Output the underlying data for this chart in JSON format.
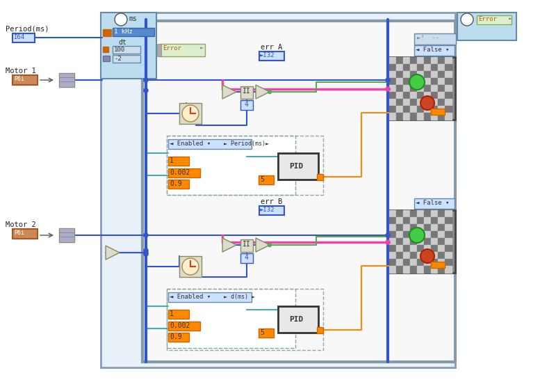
{
  "bg_color": "#ffffff",
  "wire_blue": "#3355cc",
  "wire_pink": "#ee44aa",
  "wire_orange": "#ff8800",
  "wire_green": "#55aa55",
  "wire_teal": "#44aaaa",
  "period_ms_label": "Period(ms)",
  "motor1_label": "Motor 1",
  "motor2_label": "Motor 2",
  "err_a_label": "err A",
  "err_b_label": "err B",
  "error_label": "Error",
  "dt_label": "dt",
  "pid_label": "PID",
  "ms_label": "ms",
  "khz_label": "1 kHz",
  "val_100": "100",
  "val_neg2": "-2",
  "val_i64": "I64",
  "val_i32": "I32",
  "val_1": "1",
  "val_0002": "0.002",
  "val_09": "0.9",
  "val_4": "4",
  "val_5": "5"
}
